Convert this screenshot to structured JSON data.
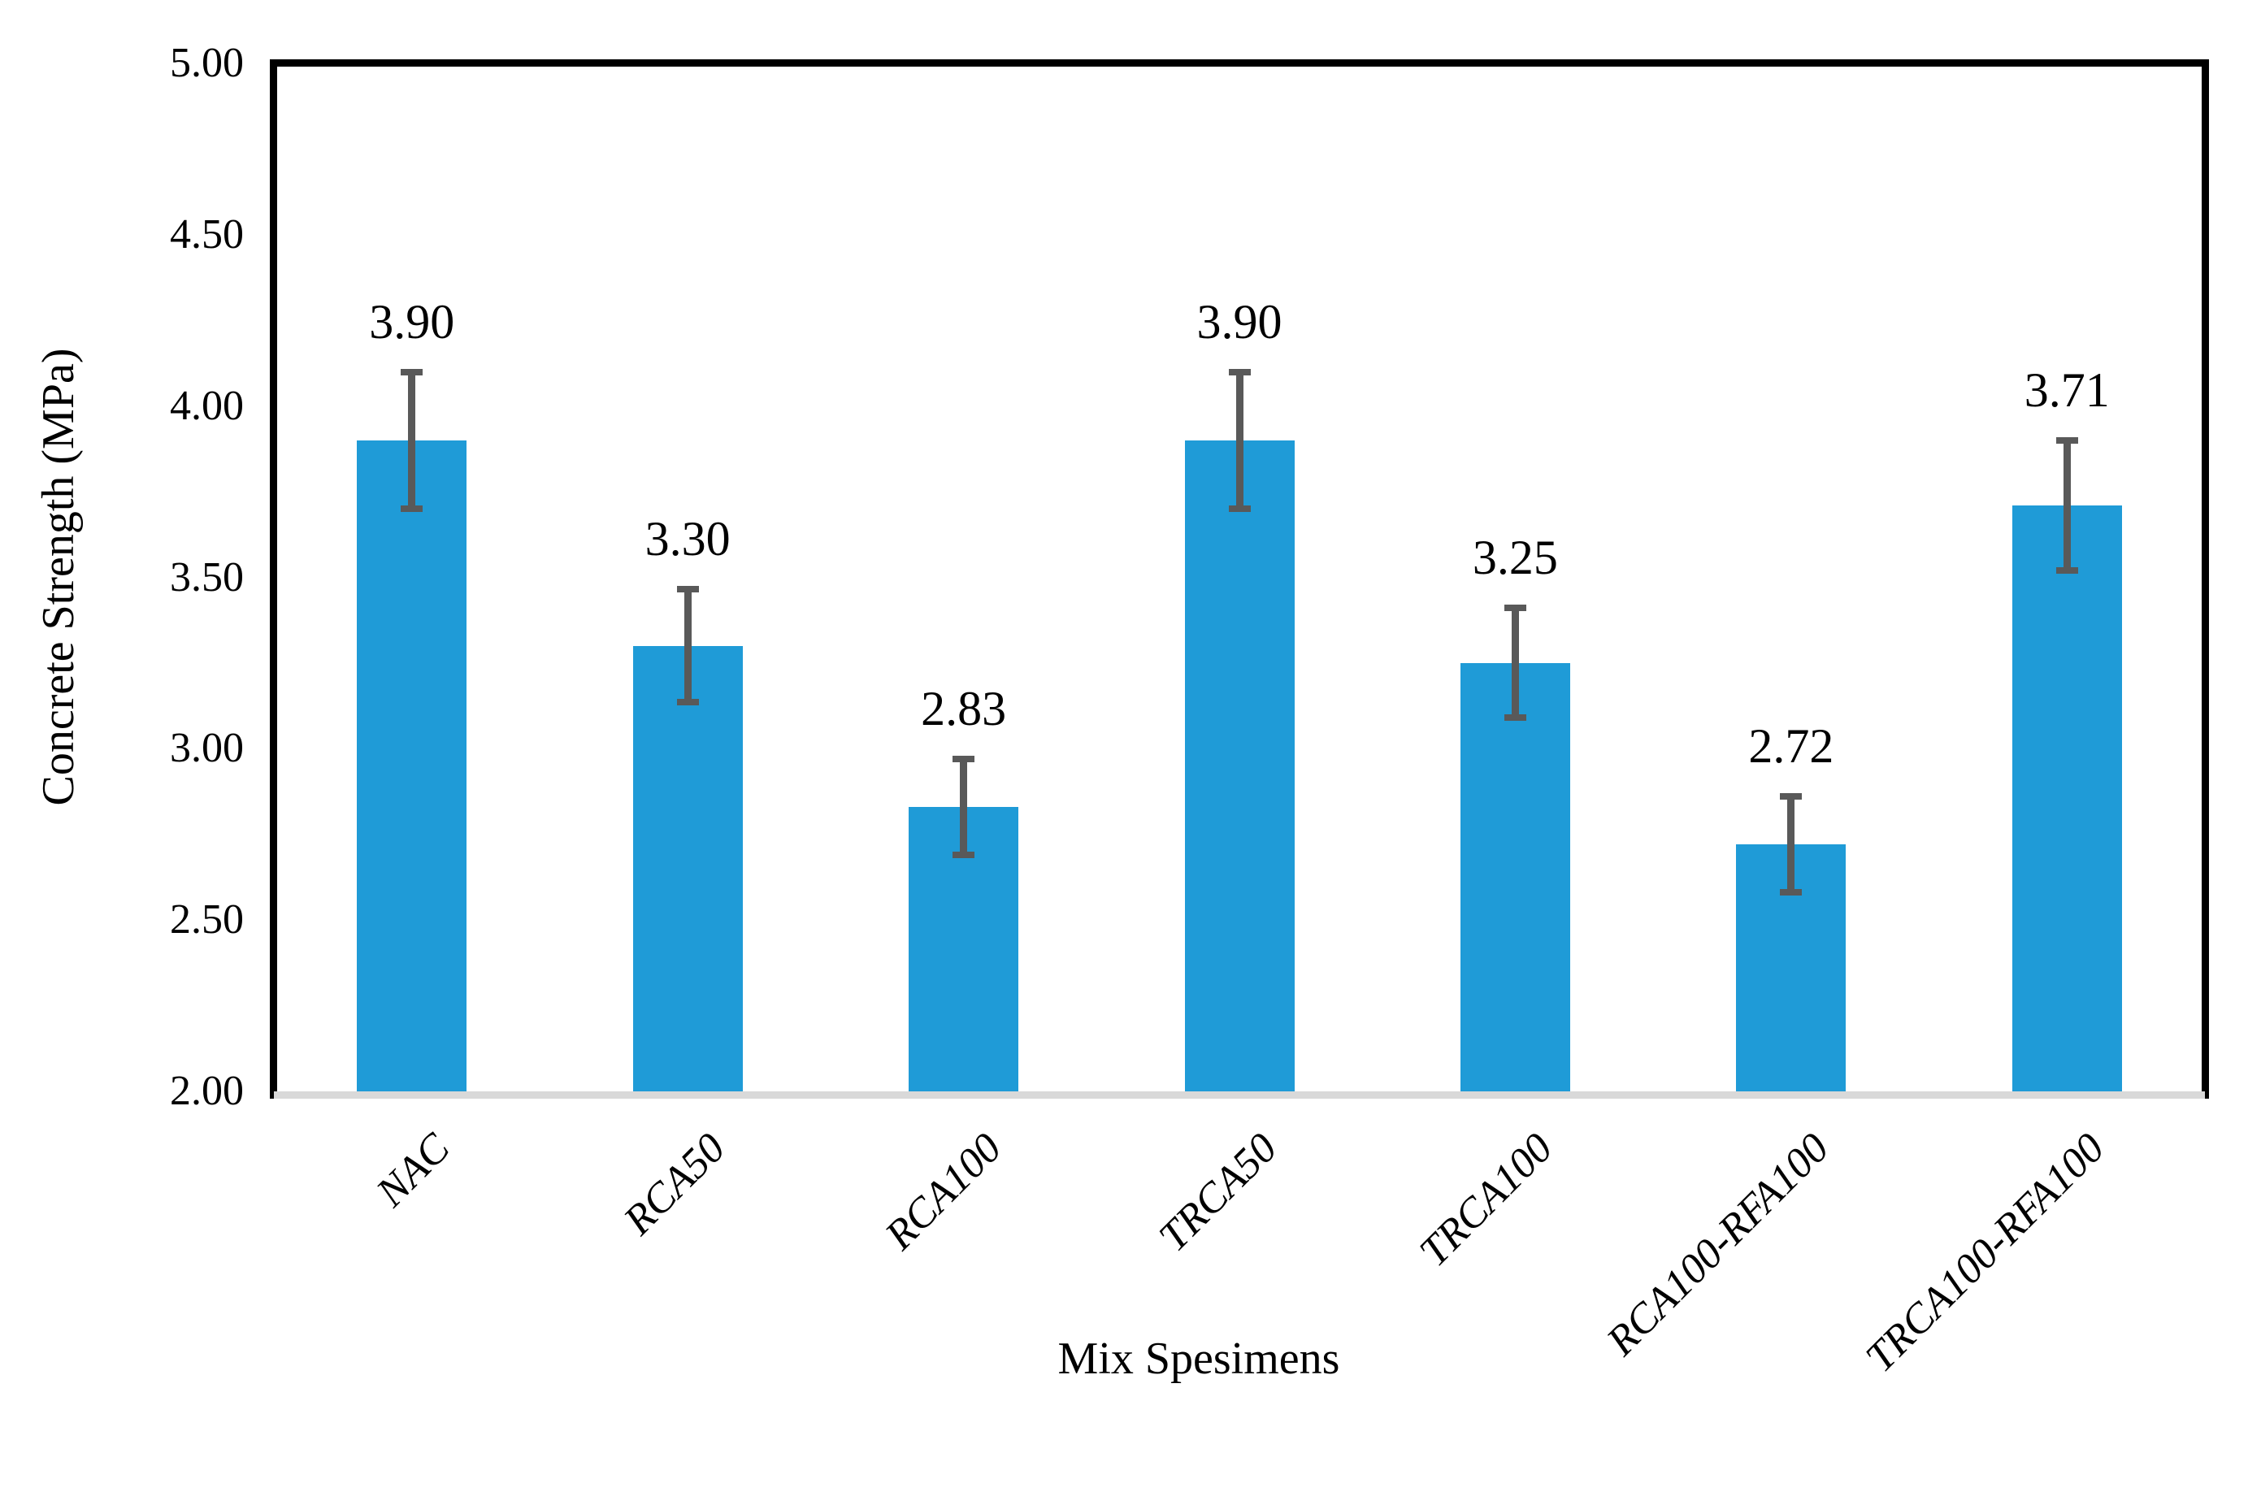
{
  "chart_data": {
    "type": "bar",
    "title": "",
    "xlabel": "Mix Spesimens",
    "ylabel": "Concrete Strength (MPa)",
    "categories": [
      "NAC",
      "RCA50",
      "RCA100",
      "TRCA50",
      "TRCA100",
      "RCA100-RFA100",
      "TRCA100-RFA100"
    ],
    "values": [
      3.9,
      3.3,
      2.83,
      3.9,
      3.25,
      2.72,
      3.71
    ],
    "bar_labels": [
      "3.90",
      "3.30",
      "2.83",
      "3.90",
      "3.25",
      "2.72",
      "3.71"
    ],
    "error_plus": [
      0.2,
      0.165,
      0.14,
      0.2,
      0.16,
      0.14,
      0.19
    ],
    "error_minus": [
      0.2,
      0.165,
      0.14,
      0.2,
      0.16,
      0.14,
      0.19
    ],
    "ylim": [
      2.0,
      5.0
    ],
    "ytick_step": 0.5,
    "ytick_labels": [
      "5.00",
      "4.50",
      "4.00",
      "3.50",
      "3.00",
      "2.50",
      "2.00"
    ],
    "grid": false,
    "legend": "none",
    "colors": {
      "bar": "#1F9BD7",
      "error_bar": "#595959",
      "x_axis_line": "#D9D9D9",
      "plot_border": "#000000",
      "text": "#000000"
    }
  }
}
